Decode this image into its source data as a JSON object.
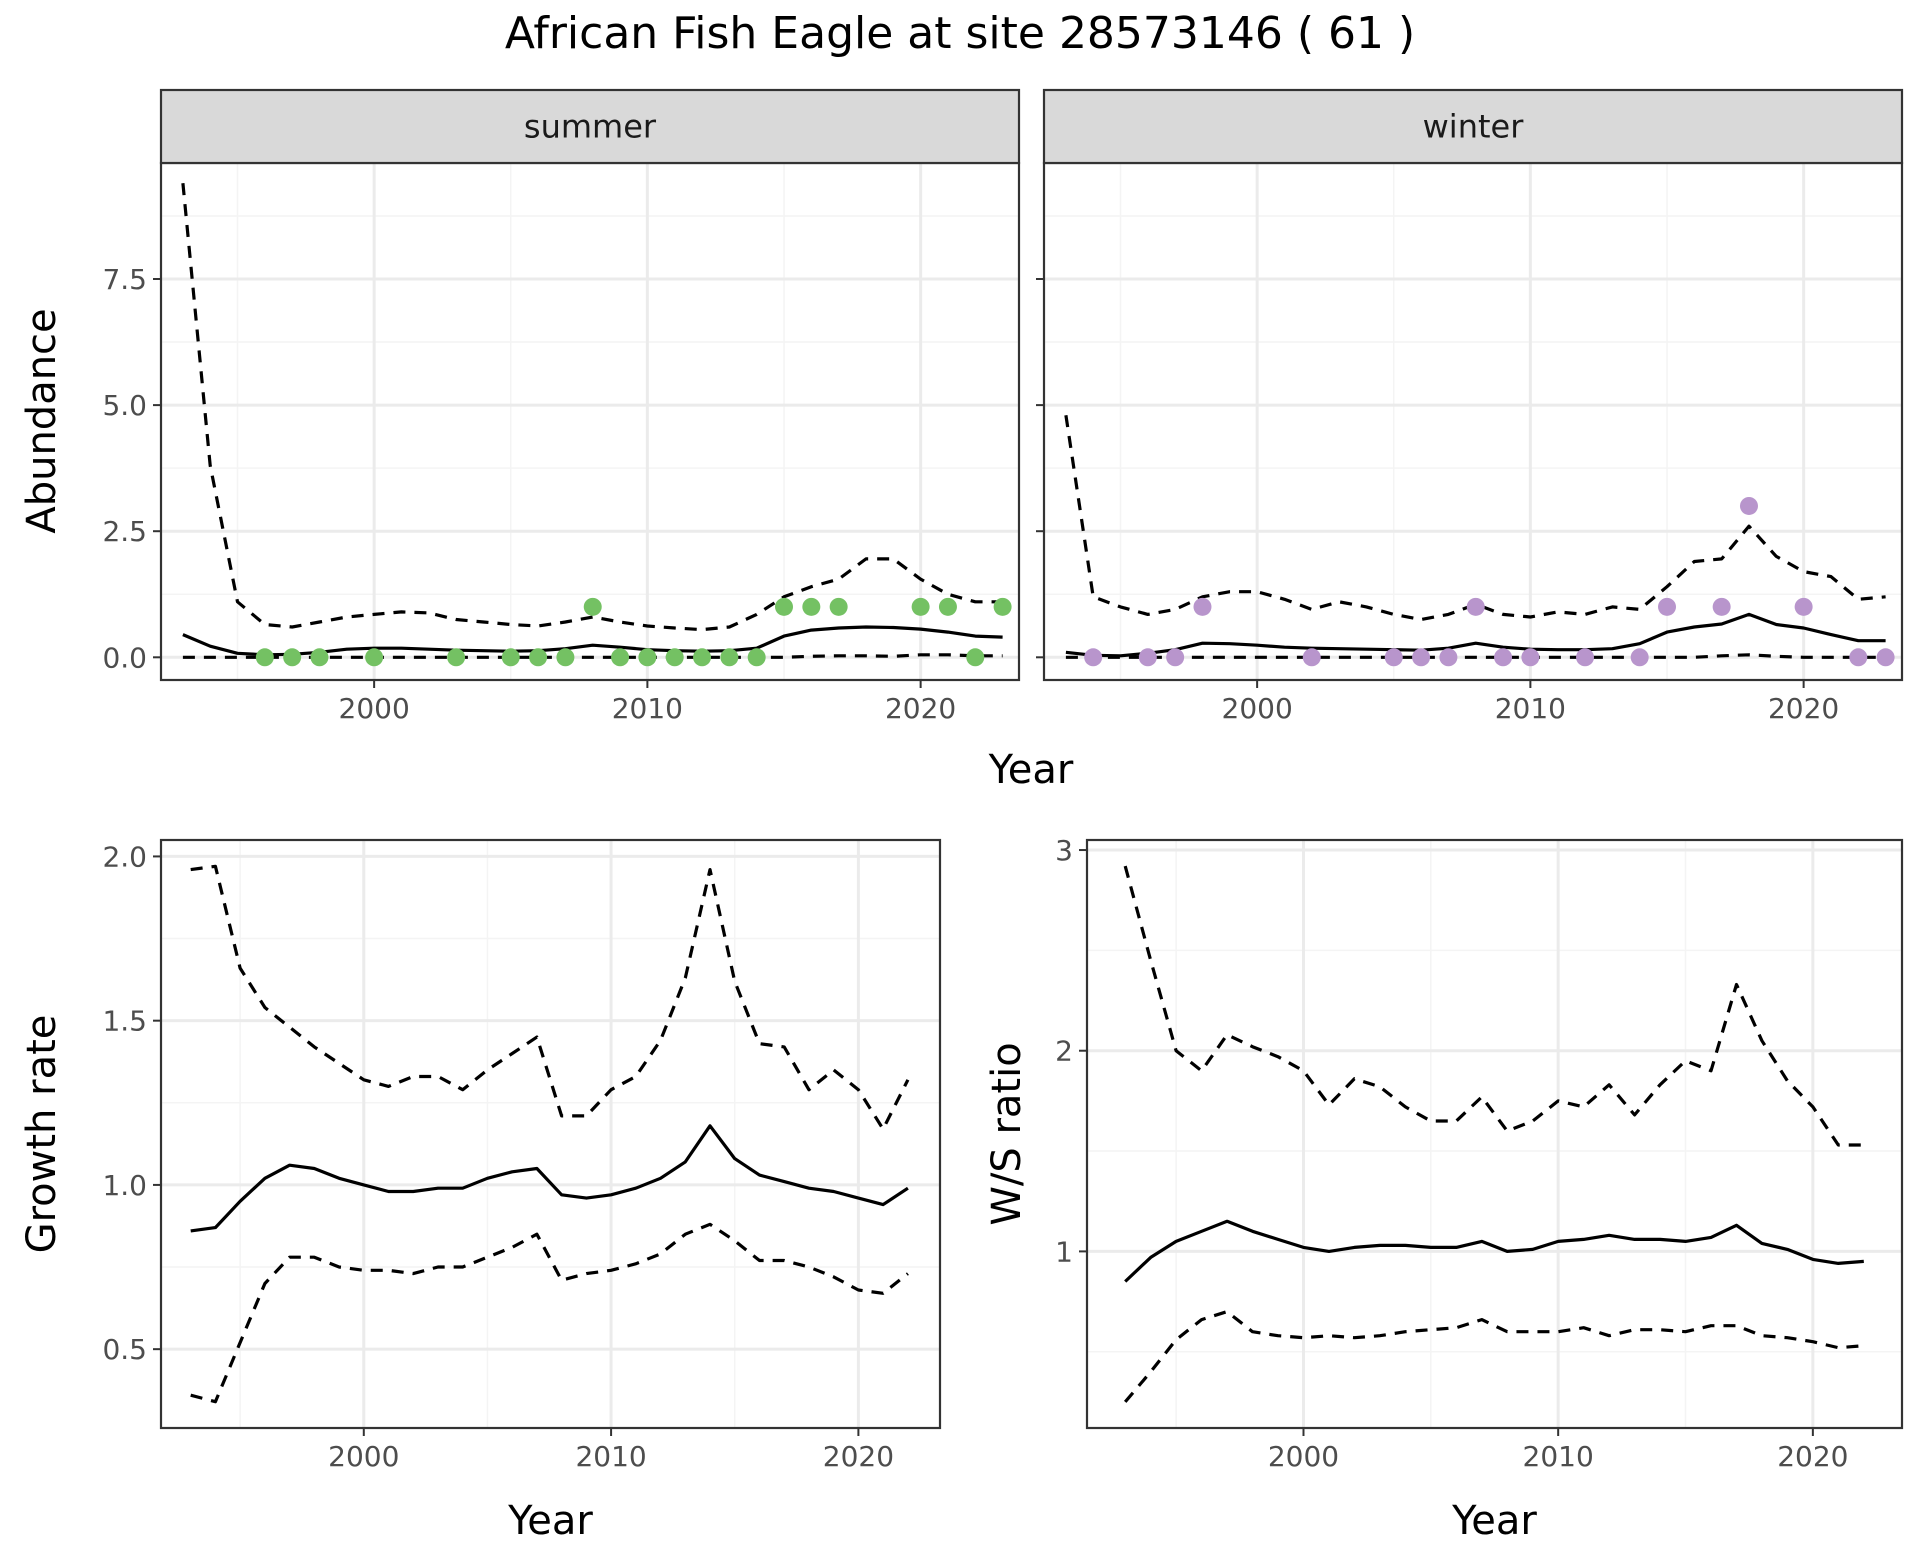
{
  "figure": {
    "title": "African Fish Eagle at site 28573146 ( 61 )"
  },
  "chart_data": [
    {
      "type": "line",
      "panel": "abundance",
      "facets": [
        "summer",
        "winter"
      ],
      "xlabel": "Year",
      "ylabel": "Abundance",
      "xlim": [
        1992.2,
        2023.6
      ],
      "ylim": [
        -0.45,
        9.8
      ],
      "x_ticks": [
        2000,
        2010,
        2020
      ],
      "x_tick_labels": [
        "2000",
        "2010",
        "2020"
      ],
      "y_ticks": [
        0,
        2.5,
        5,
        7.5
      ],
      "y_tick_labels": [
        "0.0",
        "2.5",
        "5.0",
        "7.5"
      ],
      "grid": true,
      "line_styles": {
        "estimate": "solid",
        "interval": "dashed"
      },
      "colors": {
        "summer_points": "#74c163",
        "winter_points": "#b895cc",
        "lines": "#000000"
      },
      "summer": {
        "x": [
          1993,
          1994,
          1995,
          1996,
          1997,
          1998,
          1999,
          2000,
          2001,
          2002,
          2003,
          2004,
          2005,
          2006,
          2007,
          2008,
          2009,
          2010,
          2011,
          2012,
          2013,
          2014,
          2015,
          2016,
          2017,
          2018,
          2019,
          2020,
          2021,
          2022,
          2023
        ],
        "estimate": [
          0.45,
          0.22,
          0.08,
          0.05,
          0.06,
          0.1,
          0.16,
          0.18,
          0.18,
          0.16,
          0.14,
          0.13,
          0.12,
          0.13,
          0.17,
          0.24,
          0.2,
          0.15,
          0.13,
          0.12,
          0.13,
          0.18,
          0.42,
          0.54,
          0.58,
          0.6,
          0.59,
          0.56,
          0.5,
          0.42,
          0.4
        ],
        "upper": [
          9.4,
          3.8,
          1.1,
          0.65,
          0.6,
          0.7,
          0.8,
          0.85,
          0.9,
          0.88,
          0.75,
          0.7,
          0.65,
          0.62,
          0.7,
          0.8,
          0.7,
          0.62,
          0.58,
          0.55,
          0.6,
          0.85,
          1.2,
          1.4,
          1.55,
          1.95,
          1.95,
          1.55,
          1.25,
          1.1,
          1.1
        ],
        "lower": [
          0,
          0,
          0,
          0,
          0,
          0,
          0,
          0,
          0,
          0,
          0,
          0,
          0,
          0,
          0,
          0,
          0,
          0,
          0,
          0,
          0,
          0,
          0,
          0.02,
          0.03,
          0.03,
          0.02,
          0.05,
          0.05,
          0.03,
          0.03
        ],
        "points": {
          "x": [
            1996,
            1997,
            1998,
            2000,
            2003,
            2005,
            2006,
            2007,
            2008,
            2009,
            2010,
            2011,
            2012,
            2013,
            2014,
            2015,
            2016,
            2017,
            2020,
            2021,
            2022,
            2023
          ],
          "y": [
            0,
            0,
            0,
            0,
            0,
            0,
            0,
            0,
            1,
            0,
            0,
            0,
            0,
            0,
            0,
            1,
            1,
            1,
            1,
            1,
            0,
            1
          ]
        }
      },
      "winter": {
        "x": [
          1993,
          1994,
          1995,
          1996,
          1997,
          1998,
          1999,
          2000,
          2001,
          2002,
          2003,
          2004,
          2005,
          2006,
          2007,
          2008,
          2009,
          2010,
          2011,
          2012,
          2013,
          2014,
          2015,
          2016,
          2017,
          2018,
          2019,
          2020,
          2021,
          2022,
          2023
        ],
        "estimate": [
          0.1,
          0.04,
          0.03,
          0.08,
          0.15,
          0.28,
          0.27,
          0.24,
          0.2,
          0.18,
          0.17,
          0.16,
          0.15,
          0.14,
          0.18,
          0.28,
          0.2,
          0.16,
          0.15,
          0.15,
          0.17,
          0.27,
          0.5,
          0.6,
          0.66,
          0.85,
          0.65,
          0.58,
          0.45,
          0.33,
          0.33
        ],
        "upper": [
          4.8,
          1.2,
          1.0,
          0.85,
          0.95,
          1.2,
          1.3,
          1.3,
          1.15,
          0.95,
          1.1,
          1.0,
          0.85,
          0.75,
          0.85,
          1.05,
          0.85,
          0.8,
          0.9,
          0.85,
          1.0,
          0.95,
          1.4,
          1.9,
          1.95,
          2.6,
          2.0,
          1.7,
          1.6,
          1.15,
          1.2
        ],
        "lower": [
          0,
          0,
          0,
          0,
          0,
          0,
          0,
          0,
          0,
          0,
          0,
          0,
          0,
          0,
          0,
          0,
          0,
          0,
          0,
          0,
          0,
          0,
          0,
          0,
          0.03,
          0.05,
          0.02,
          0,
          0,
          0,
          0
        ],
        "points": {
          "x": [
            1994,
            1996,
            1997,
            1998,
            2002,
            2005,
            2006,
            2007,
            2008,
            2009,
            2010,
            2012,
            2014,
            2015,
            2017,
            2018,
            2020,
            2022,
            2023
          ],
          "y": [
            0,
            0,
            0,
            1,
            0,
            0,
            0,
            0,
            1,
            0,
            0,
            0,
            0,
            1,
            1,
            3,
            1,
            0,
            0
          ]
        }
      }
    },
    {
      "type": "line",
      "panel": "growth",
      "xlabel": "Year",
      "ylabel": "Growth rate",
      "xlim": [
        1991.8,
        2023.3
      ],
      "ylim": [
        0.26,
        2.05
      ],
      "x_ticks": [
        2000,
        2010,
        2020
      ],
      "x_tick_labels": [
        "2000",
        "2010",
        "2020"
      ],
      "y_ticks": [
        0.5,
        1.0,
        1.5,
        2.0
      ],
      "y_tick_labels": [
        "0.5",
        "1.0",
        "1.5",
        "2.0"
      ],
      "grid": true,
      "x": [
        1993,
        1994,
        1995,
        1996,
        1997,
        1998,
        1999,
        2000,
        2001,
        2002,
        2003,
        2004,
        2005,
        2006,
        2007,
        2008,
        2009,
        2010,
        2011,
        2012,
        2013,
        2014,
        2015,
        2016,
        2017,
        2018,
        2019,
        2020,
        2021,
        2022
      ],
      "estimate": [
        0.86,
        0.87,
        0.95,
        1.02,
        1.06,
        1.05,
        1.02,
        1.0,
        0.98,
        0.98,
        0.99,
        0.99,
        1.02,
        1.04,
        1.05,
        0.97,
        0.96,
        0.97,
        0.99,
        1.02,
        1.07,
        1.18,
        1.08,
        1.03,
        1.01,
        0.99,
        0.98,
        0.96,
        0.94,
        0.99
      ],
      "upper": [
        1.96,
        1.97,
        1.66,
        1.54,
        1.48,
        1.42,
        1.37,
        1.32,
        1.3,
        1.33,
        1.33,
        1.29,
        1.35,
        1.4,
        1.45,
        1.21,
        1.21,
        1.29,
        1.33,
        1.44,
        1.63,
        1.96,
        1.62,
        1.43,
        1.42,
        1.29,
        1.35,
        1.29,
        1.17,
        1.32
      ],
      "lower": [
        0.36,
        0.34,
        0.52,
        0.7,
        0.78,
        0.78,
        0.75,
        0.74,
        0.74,
        0.73,
        0.75,
        0.75,
        0.78,
        0.81,
        0.85,
        0.71,
        0.73,
        0.74,
        0.76,
        0.79,
        0.85,
        0.88,
        0.83,
        0.77,
        0.77,
        0.75,
        0.72,
        0.68,
        0.67,
        0.73
      ]
    },
    {
      "type": "line",
      "panel": "ws_ratio",
      "xlabel": "Year",
      "ylabel": "W/S ratio",
      "xlim": [
        1991.5,
        2023.5
      ],
      "ylim": [
        0.12,
        3.05
      ],
      "x_ticks": [
        2000,
        2010,
        2020
      ],
      "x_tick_labels": [
        "2000",
        "2010",
        "2020"
      ],
      "y_ticks": [
        1,
        2,
        3
      ],
      "y_tick_labels": [
        "1",
        "2",
        "3"
      ],
      "grid": true,
      "x": [
        1993,
        1994,
        1995,
        1996,
        1997,
        1998,
        1999,
        2000,
        2001,
        2002,
        2003,
        2004,
        2005,
        2006,
        2007,
        2008,
        2009,
        2010,
        2011,
        2012,
        2013,
        2014,
        2015,
        2016,
        2017,
        2018,
        2019,
        2020,
        2021,
        2022
      ],
      "estimate": [
        0.85,
        0.97,
        1.05,
        1.1,
        1.15,
        1.1,
        1.06,
        1.02,
        1.0,
        1.02,
        1.03,
        1.03,
        1.02,
        1.02,
        1.05,
        1.0,
        1.01,
        1.05,
        1.06,
        1.08,
        1.06,
        1.06,
        1.05,
        1.07,
        1.13,
        1.04,
        1.01,
        0.96,
        0.94,
        0.95
      ],
      "upper": [
        2.92,
        2.45,
        2.0,
        1.9,
        2.08,
        2.02,
        1.97,
        1.9,
        1.73,
        1.86,
        1.82,
        1.72,
        1.65,
        1.65,
        1.77,
        1.6,
        1.65,
        1.75,
        1.72,
        1.83,
        1.68,
        1.83,
        1.95,
        1.9,
        2.33,
        2.05,
        1.85,
        1.72,
        1.53,
        1.53
      ],
      "lower": [
        0.25,
        0.4,
        0.56,
        0.66,
        0.7,
        0.6,
        0.58,
        0.57,
        0.58,
        0.57,
        0.58,
        0.6,
        0.61,
        0.62,
        0.66,
        0.6,
        0.6,
        0.6,
        0.62,
        0.58,
        0.61,
        0.61,
        0.6,
        0.63,
        0.63,
        0.58,
        0.57,
        0.55,
        0.52,
        0.53
      ]
    }
  ]
}
